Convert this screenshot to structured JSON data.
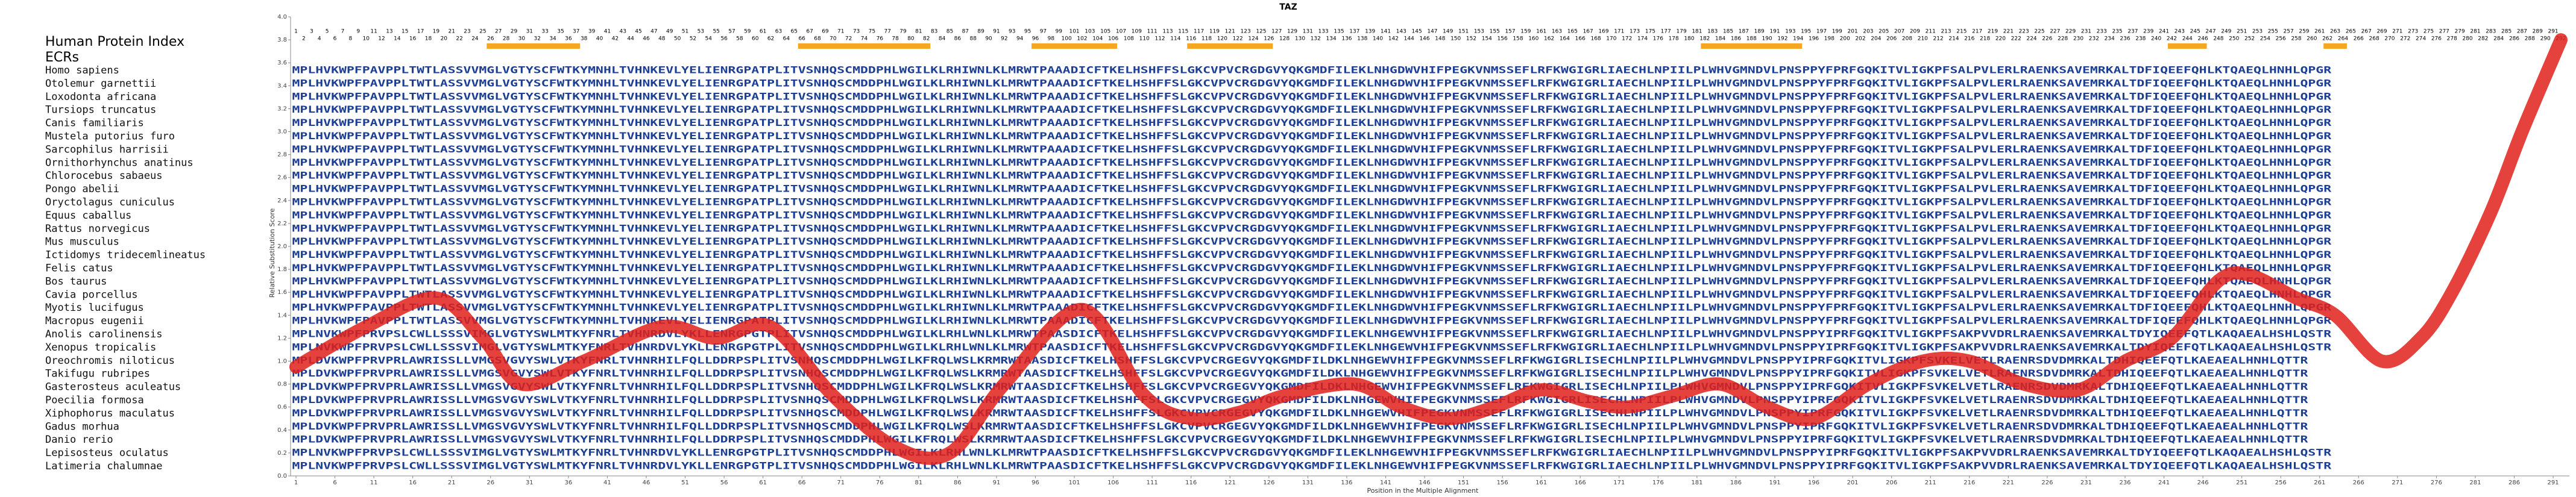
{
  "chart_data": {
    "type": "line",
    "title": "TAZ",
    "xlabel": "Position in the Multiple Alignment",
    "ylabel": "Relative Substitution Score",
    "index_label": "Human Protein Index",
    "ecr_label": "ECRs",
    "xlim": [
      1,
      292
    ],
    "ylim": [
      0,
      4
    ],
    "xticks": [
      1,
      6,
      11,
      16,
      21,
      26,
      31,
      36,
      41,
      46,
      51,
      56,
      61,
      66,
      71,
      76,
      81,
      86,
      91,
      96,
      101,
      106,
      111,
      116,
      121,
      126,
      131,
      136,
      141,
      146,
      151,
      156,
      161,
      166,
      171,
      176,
      181,
      186,
      191,
      196,
      201,
      206,
      211,
      216,
      221,
      226,
      231,
      236,
      241,
      246,
      251,
      256,
      261,
      266,
      271,
      276,
      281,
      286,
      291
    ],
    "yticks": [
      {
        "value": 0,
        "label": "0.0"
      },
      {
        "value": 0.2,
        "label": "0.2"
      },
      {
        "value": 0.4,
        "label": "0.4"
      },
      {
        "value": 0.6,
        "label": "0.6"
      },
      {
        "value": 0.8,
        "label": "0.8"
      },
      {
        "value": 1,
        "label": "1.0"
      },
      {
        "value": 1.2,
        "label": "1.2"
      },
      {
        "value": 1.4,
        "label": "1.4"
      },
      {
        "value": 1.6,
        "label": "1.6"
      },
      {
        "value": 1.8,
        "label": "1.8"
      },
      {
        "value": 2,
        "label": "2.0"
      },
      {
        "value": 2.2,
        "label": "2.2"
      },
      {
        "value": 2.4,
        "label": "2.4"
      },
      {
        "value": 2.6,
        "label": "2.6"
      },
      {
        "value": 2.8,
        "label": "2.8"
      },
      {
        "value": 3,
        "label": "3.0"
      },
      {
        "value": 3.2,
        "label": "3.2"
      },
      {
        "value": 3.4,
        "label": "3.4"
      },
      {
        "value": 3.6,
        "label": "3.6"
      },
      {
        "value": 3.8,
        "label": "3.8"
      },
      {
        "value": 4,
        "label": "4.0"
      }
    ],
    "human_index": [
      1,
      2,
      3,
      4,
      5,
      6,
      7,
      8,
      9,
      10,
      11,
      12,
      13,
      14,
      15,
      16,
      17,
      18,
      19,
      20,
      21,
      22,
      23,
      24,
      25,
      26,
      27,
      28,
      29,
      30,
      31,
      32,
      33,
      34,
      35,
      36,
      37,
      38,
      39,
      40,
      41,
      42,
      43,
      44,
      45,
      46,
      47,
      48,
      49,
      50,
      51,
      52,
      53,
      54,
      55,
      56,
      57,
      58,
      59,
      60,
      61,
      62,
      63,
      64,
      65,
      66,
      67,
      68,
      69,
      70,
      71,
      72,
      73,
      74,
      75,
      76,
      77,
      78,
      79,
      80,
      81,
      82,
      83,
      84,
      85,
      86,
      87,
      88,
      89,
      90,
      91,
      92,
      93,
      94,
      95,
      96,
      97,
      98,
      99,
      100,
      101,
      102,
      103,
      104,
      105,
      106,
      107,
      108,
      109,
      110,
      111,
      112,
      113,
      114,
      115,
      116,
      117,
      118,
      119,
      120,
      121,
      122,
      123,
      124,
      125,
      126,
      127,
      128,
      129,
      130,
      131,
      132,
      133,
      134,
      135,
      136,
      137,
      138,
      139,
      140,
      141,
      142,
      143,
      144,
      145,
      146,
      147,
      148,
      149,
      150,
      151,
      152,
      153,
      154,
      155,
      156,
      157,
      158,
      159,
      160,
      161,
      162,
      163,
      164,
      165,
      166,
      167,
      168,
      169,
      170,
      171,
      172,
      173,
      174,
      175,
      176,
      177,
      178,
      179,
      180,
      181,
      182,
      183,
      184,
      185,
      186,
      187,
      188,
      189,
      190,
      191,
      192,
      193,
      194,
      195,
      196,
      197,
      198,
      199,
      200,
      201,
      202,
      203,
      204,
      205,
      206,
      207,
      208,
      209,
      210,
      211,
      212,
      213,
      214,
      215,
      216,
      217,
      218,
      219,
      220,
      221,
      222,
      223,
      224,
      225,
      226,
      227,
      228,
      229,
      230,
      231,
      232,
      233,
      234,
      235,
      236,
      237,
      238,
      239,
      240,
      241,
      242,
      243,
      244,
      245,
      246,
      247,
      248,
      249,
      250,
      251,
      252,
      253,
      254,
      255,
      256,
      257,
      258,
      259,
      260,
      261,
      262,
      263,
      264,
      265,
      266,
      267,
      268,
      269,
      270,
      271,
      272,
      273,
      274,
      275,
      276,
      277,
      278,
      279,
      280,
      281,
      282,
      283,
      284,
      285,
      286,
      287,
      288,
      289,
      290,
      291,
      292
    ],
    "ecrs": [
      [
        26,
        37
      ],
      [
        66,
        82
      ],
      [
        96,
        106
      ],
      [
        116,
        126
      ],
      [
        182,
        194
      ],
      [
        242,
        246
      ],
      [
        262,
        264
      ]
    ],
    "ecr_color": "#f5a623",
    "rows": [
      {
        "name": "Homo sapiens",
        "sequence": "MPLHVKWPFPAVPPLTWTLASSVVMGLVGTYSCFWTKYMNHLTVHNKEVLYELIENRGPATPLITVSNHQSCMDDPHLWGILKLRHIWNLKLMRWTPAAADICFTKELHSHFFSLGKCVPVCRGDGVYQKGMDFILEKLNHGDWVHIFPEGKVNMSSEFLRFKWGIGRLIAECHLNPIILPLWHVGMNDVLPNSPPYFPRFGQKITVLIGKPFSALPVLERLRAENKSAVEMRKALTDFIQEEFQHLKTQAEQLHNHLQPGR"
      },
      {
        "name": "Otolemur garnettii",
        "sequence": "MPLHVKWPFPAVPPLTWTLASSVVMGLVGTYSCFWTKYMNHLTVHNKEVLYELIENRGPATPLITVSNHQSCMDDPHLWGILKLRHIWNLKLMRWTPAAADICFTKELHSHFFSLGKCVPVCRGDGVYQKGMDFILEKLNHGDWVHIFPEGKVNMSSEFLRFKWGIGRLIAECHLNPIILPLWHVGMNDVLPNSPPYFPRFGQKITVLIGKPFSALPVLERLRAENKSAVEMRKALTDFIQEEFQHLKTQAEQLHNHLQPGR"
      },
      {
        "name": "Loxodonta africana",
        "sequence": "MPLHVKWPFPAVPPLTWTLASSVVMGLVGTYSCFWTKYMNHLTVHNKEVLYELIENRGPATPLITVSNHQSCMDDPHLWGILKLRHIWNLKLMRWTPAAADICFTKELHSHFFSLGKCVPVCRGDGVYQKGMDFILEKLNHGDWVHIFPEGKVNMSSEFLRFKWGIGRLIAECHLNPIILPLWHVGMNDVLPNSPPYFPRFGQKITVLIGKPFSALPVLERLRAENKSAVEMRKALTDFIQEEFQHLKTQAEQLHNHLQPGR"
      },
      {
        "name": "Tursiops truncatus",
        "sequence": "MPLHVKWPFPAVPPLTWTLASSVVMGLVGTYSCFWTKYMNHLTVHNKEVLYELIENRGPATPLITVSNHQSCMDDPHLWGILKLRHIWNLKLMRWTPAAADICFTKELHSHFFSLGKCVPVCRGDGVYQKGMDFILEKLNHGDWVHIFPEGKVNMSSEFLRFKWGIGRLIAECHLNPIILPLWHVGMNDVLPNSPPYFPRFGQKITVLIGKPFSALPVLERLRAENKSAVEMRKALTDFIQEEFQHLKTQAEQLHNHLQPGR"
      },
      {
        "name": "Canis familiaris",
        "sequence": "MPLHVKWPFPAVPPLTWTLASSVVMGLVGTYSCFWTKYMNHLTVHNKEVLYELIENRGPATPLITVSNHQSCMDDPHLWGILKLRHIWNLKLMRWTPAAADICFTKELHSHFFSLGKCVPVCRGDGVYQKGMDFILEKLNHGDWVHIFPEGKVNMSSEFLRFKWGIGRLIAECHLNPIILPLWHVGMNDVLPNSPPYFPRFGQKITVLIGKPFSALPVLERLRAENKSAVEMRKALTDFIQEEFQHLKTQAEQLHNHLQPGR"
      },
      {
        "name": "Mustela putorius furo",
        "sequence": "MPLHVKWPFPAVPPLTWTLASSVVMGLVGTYSCFWTKYMNHLTVHNKEVLYELIENRGPATPLITVSNHQSCMDDPHLWGILKLRHIWNLKLMRWTPAAADICFTKELHSHFFSLGKCVPVCRGDGVYQKGMDFILEKLNHGDWVHIFPEGKVNMSSEFLRFKWGIGRLIAECHLNPIILPLWHVGMNDVLPNSPPYFPRFGQKITVLIGKPFSALPVLERLRAENKSAVEMRKALTDFIQEEFQHLKTQAEQLHNHLQPGR"
      },
      {
        "name": "Sarcophilus harrisii",
        "sequence": "MPLHVKWPFPAVPPLTWTLASSVVMGLVGTYSCFWTKYMNHLTVHNKEVLYELIENRGPATPLITVSNHQSCMDDPHLWGILKLRHIWNLKLMRWTPAAADICFTKELHSHFFSLGKCVPVCRGDGVYQKGMDFILEKLNHGDWVHIFPEGKVNMSSEFLRFKWGIGRLIAECHLNPIILPLWHVGMNDVLPNSPPYFPRFGQKITVLIGKPFSALPVLERLRAENKSAVEMRKALTDFIQEEFQHLKTQAEQLHNHLQPGR"
      },
      {
        "name": "Ornithorhynchus anatinus",
        "sequence": "MPLHVKWPFPAVPPLTWTLASSVVMGLVGTYSCFWTKYMNHLTVHNKEVLYELIENRGPATPLITVSNHQSCMDDPHLWGILKLRHIWNLKLMRWTPAAADICFTKELHSHFFSLGKCVPVCRGDGVYQKGMDFILEKLNHGDWVHIFPEGKVNMSSEFLRFKWGIGRLIAECHLNPIILPLWHVGMNDVLPNSPPYFPRFGQKITVLIGKPFSALPVLERLRAENKSAVEMRKALTDFIQEEFQHLKTQAEQLHNHLQPGR"
      },
      {
        "name": "Chlorocebus sabaeus",
        "sequence": "MPLHVKWPFPAVPPLTWTLASSVVMGLVGTYSCFWTKYMNHLTVHNKEVLYELIENRGPATPLITVSNHQSCMDDPHLWGILKLRHIWNLKLMRWTPAAADICFTKELHSHFFSLGKCVPVCRGDGVYQKGMDFILEKLNHGDWVHIFPEGKVNMSSEFLRFKWGIGRLIAECHLNPIILPLWHVGMNDVLPNSPPYFPRFGQKITVLIGKPFSALPVLERLRAENKSAVEMRKALTDFIQEEFQHLKTQAEQLHNHLQPGR"
      },
      {
        "name": "Pongo abelii",
        "sequence": "MPLHVKWPFPAVPPLTWTLASSVVMGLVGTYSCFWTKYMNHLTVHNKEVLYELIENRGPATPLITVSNHQSCMDDPHLWGILKLRHIWNLKLMRWTPAAADICFTKELHSHFFSLGKCVPVCRGDGVYQKGMDFILEKLNHGDWVHIFPEGKVNMSSEFLRFKWGIGRLIAECHLNPIILPLWHVGMNDVLPNSPPYFPRFGQKITVLIGKPFSALPVLERLRAENKSAVEMRKALTDFIQEEFQHLKTQAEQLHNHLQPGR"
      },
      {
        "name": "Oryctolagus cuniculus",
        "sequence": "MPLHVKWPFPAVPPLTWTLASSVVMGLVGTYSCFWTKYMNHLTVHNKEVLYELIENRGPATPLITVSNHQSCMDDPHLWGILKLRHIWNLKLMRWTPAAADICFTKELHSHFFSLGKCVPVCRGDGVYQKGMDFILEKLNHGDWVHIFPEGKVNMSSEFLRFKWGIGRLIAECHLNPIILPLWHVGMNDVLPNSPPYFPRFGQKITVLIGKPFSALPVLERLRAENKSAVEMRKALTDFIQEEFQHLKTQAEQLHNHLQPGR"
      },
      {
        "name": "Equus caballus",
        "sequence": "MPLHVKWPFPAVPPLTWTLASSVVMGLVGTYSCFWTKYMNHLTVHNKEVLYELIENRGPATPLITVSNHQSCMDDPHLWGILKLRHIWNLKLMRWTPAAADICFTKELHSHFFSLGKCVPVCRGDGVYQKGMDFILEKLNHGDWVHIFPEGKVNMSSEFLRFKWGIGRLIAECHLNPIILPLWHVGMNDVLPNSPPYFPRFGQKITVLIGKPFSALPVLERLRAENKSAVEMRKALTDFIQEEFQHLKTQAEQLHNHLQPGR"
      },
      {
        "name": "Rattus norvegicus",
        "sequence": "MPLHVKWPFPAVPPLTWTLASSVVMGLVGTYSCFWTKYMNHLTVHNKEVLYELIENRGPATPLITVSNHQSCMDDPHLWGILKLRHIWNLKLMRWTPAAADICFTKELHSHFFSLGKCVPVCRGDGVYQKGMDFILEKLNHGDWVHIFPEGKVNMSSEFLRFKWGIGRLIAECHLNPIILPLWHVGMNDVLPNSPPYFPRFGQKITVLIGKPFSALPVLERLRAENKSAVEMRKALTDFIQEEFQHLKTQAEQLHNHLQPGR"
      },
      {
        "name": "Mus musculus",
        "sequence": "MPLHVKWPFPAVPPLTWTLASSVVMGLVGTYSCFWTKYMNHLTVHNKEVLYELIENRGPATPLITVSNHQSCMDDPHLWGILKLRHIWNLKLMRWTPAAADICFTKELHSHFFSLGKCVPVCRGDGVYQKGMDFILEKLNHGDWVHIFPEGKVNMSSEFLRFKWGIGRLIAECHLNPIILPLWHVGMNDVLPNSPPYFPRFGQKITVLIGKPFSALPVLERLRAENKSAVEMRKALTDFIQEEFQHLKTQAEQLHNHLQPGR"
      },
      {
        "name": "Ictidomys tridecemlineatus",
        "sequence": "MPLHVKWPFPAVPPLTWTLASSVVMGLVGTYSCFWTKYMNHLTVHNKEVLYELIENRGPATPLITVSNHQSCMDDPHLWGILKLRHIWNLKLMRWTPAAADICFTKELHSHFFSLGKCVPVCRGDGVYQKGMDFILEKLNHGDWVHIFPEGKVNMSSEFLRFKWGIGRLIAECHLNPIILPLWHVGMNDVLPNSPPYFPRFGQKITVLIGKPFSALPVLERLRAENKSAVEMRKALTDFIQEEFQHLKTQAEQLHNHLQPGR"
      },
      {
        "name": "Felis catus",
        "sequence": "MPLHVKWPFPAVPPLTWTLASSVVMGLVGTYSCFWTKYMNHLTVHNKEVLYELIENRGPATPLITVSNHQSCMDDPHLWGILKLRHIWNLKLMRWTPAAADICFTKELHSHFFSLGKCVPVCRGDGVYQKGMDFILEKLNHGDWVHIFPEGKVNMSSEFLRFKWGIGRLIAECHLNPIILPLWHVGMNDVLPNSPPYFPRFGQKITVLIGKPFSALPVLERLRAENKSAVEMRKALTDFIQEEFQHLKTQAEQLHNHLQPGR"
      },
      {
        "name": "Bos taurus",
        "sequence": "MPLHVKWPFPAVPPLTWTLASSVVMGLVGTYSCFWTKYMNHLTVHNKEVLYELIENRGPATPLITVSNHQSCMDDPHLWGILKLRHIWNLKLMRWTPAAADICFTKELHSHFFSLGKCVPVCRGDGVYQKGMDFILEKLNHGDWVHIFPEGKVNMSSEFLRFKWGIGRLIAECHLNPIILPLWHVGMNDVLPNSPPYFPRFGQKITVLIGKPFSALPVLERLRAENKSAVEMRKALTDFIQEEFQHLKTQAEQLHNHLQPGR"
      },
      {
        "name": "Cavia porcellus",
        "sequence": "MPLHVKWPFPAVPPLTWTLASSVVMGLVGTYSCFWTKYMNHLTVHNKEVLYELIENRGPATPLITVSNHQSCMDDPHLWGILKLRHIWNLKLMRWTPAAADICFTKELHSHFFSLGKCVPVCRGDGVYQKGMDFILEKLNHGDWVHIFPEGKVNMSSEFLRFKWGIGRLIAECHLNPIILPLWHVGMNDVLPNSPPYFPRFGQKITVLIGKPFSALPVLERLRAENKSAVEMRKALTDFIQEEFQHLKTQAEQLHNHLQPGR"
      },
      {
        "name": "Myotis lucifugus",
        "sequence": "MPLHVKWPFPAVPPLTWTLASSVVMGLVGTYSCFWTKYMNHLTVHNKEVLYELIENRGPATPLITVSNHQSCMDDPHLWGILKLRHIWNLKLMRWTPAAADICFTKELHSHFFSLGKCVPVCRGDGVYQKGMDFILEKLNHGDWVHIFPEGKVNMSSEFLRFKWGIGRLIAECHLNPIILPLWHVGMNDVLPNSPPYFPRFGQKITVLIGKPFSALPVLERLRAENKSAVEMRKALTDFIQEEFQHLKTQAEQLHNHLQPGR"
      },
      {
        "name": "Macropus eugenii",
        "sequence": "MPLHVKWPFPAVPPLTWTLASSVVMGLVGTYSCFWTKYMNHLTVHNKEVLYELIENRGPATPLITVSNHQSCMDDPHLWGILKLRHIWNLKLMRWTPAAADICFTKELHSHFFSLGKCVPVCRGDGVYQKGMDFILEKLNHGDWVHIFPEGKVNMSSEFLRFKWGIGRLIAECHLNPIILPLWHVGMNDVLPNSPPYFPRFGQKITVLIGKPFSALPVLERLRAENKSAVEMRKALTDFIQEEFQHLKTQAEQLHNHLQPGR"
      },
      {
        "name": "Anolis carolinensis",
        "sequence": "MPLNVKWPFPRVPSLCWLLSSSVIMGLVGTYSWLMTKYFNRLTVHNRDVLYKLLENRGPGTPLITVSNHQSCMDDPHLWGILKLRHLWNLKLMRWTPAASDICFTKELHSHFFSLGKCVPVCRGDGVYQKGMDFILEKLNHGEWVHIFPEGKVNMSSEFLRFKWGIGRLIAECHLNPIILPLWHVGMNDVLPNSPPYIPRFGQKITVLIGKPFSAKPVVDRLRAENKSAVEMRKALTDYIQEEFQTLKAQAEALHSHLQSTR"
      },
      {
        "name": "Xenopus tropicalis",
        "sequence": "MPLNVKWPFPRVPSLCWLLSSSVIMGLVGTYSWLMTKYFNRLTVHNRDVLYKLLENRGPGTPLITVSNHQSCMDDPHLWGILKLRHLWNLKLMRWTPAASDICFTKELHSHFFSLGKCVPVCRGDGVYQKGMDFILEKLNHGEWVHIFPEGKVNMSSEFLRFKWGIGRLIAECHLNPIILPLWHVGMNDVLPNSPPYIPRFGQKITVLIGKPFSAKPVVDRLRAENKSAVEMRKALTDYIQEEFQTLKAQAEALHSHLQSTR"
      },
      {
        "name": "Oreochromis niloticus",
        "sequence": "MPLDVKWPFPRVPRLAWRISSLLVMGSVGVYSWLVTKYFNRLTVHNRHILFQLLDDRPSPLITVSNHQSCMDDPHLWGILKFRQLWSLKRMRWTAASDICFTKELHSHFFSLGKCVPVCRGEGVYQKGMDFILDKLNHGEWVHIFPEGKVNMSSEFLRFKWGIGRLISECHLNPIILPLWHVGMNDVLPNSPPYIPRFGQKITVLIGKPFSVKELVETLRAENRSDVDMRKALTDHIQEEFQTLKAEAEALHNHLQTTR"
      },
      {
        "name": "Takifugu rubripes",
        "sequence": "MPLDVKWPFPRVPRLAWRISSLLVMGSVGVYSWLVTKYFNRLTVHNRHILFQLLDDRPSPLITVSNHQSCMDDPHLWGILKFRQLWSLKRMRWTAASDICFTKELHSHFFSLGKCVPVCRGEGVYQKGMDFILDKLNHGEWVHIFPEGKVNMSSEFLRFKWGIGRLISECHLNPIILPLWHVGMNDVLPNSPPYIPRFGQKITVLIGKPFSVKELVETLRAENRSDVDMRKALTDHIQEEFQTLKAEAEALHNHLQTTR"
      },
      {
        "name": "Gasterosteus aculeatus",
        "sequence": "MPLDVKWPFPRVPRLAWRISSLLVMGSVGVYSWLVTKYFNRLTVHNRHILFQLLDDRPSPLITVSNHQSCMDDPHLWGILKFRQLWSLKRMRWTAASDICFTKELHSHFFSLGKCVPVCRGEGVYQKGMDFILDKLNHGEWVHIFPEGKVNMSSEFLRFKWGIGRLISECHLNPIILPLWHVGMNDVLPNSPPYIPRFGQKITVLIGKPFSVKELVETLRAENRSDVDMRKALTDHIQEEFQTLKAEAEALHNHLQTTR"
      },
      {
        "name": "Poecilia formosa",
        "sequence": "MPLDVKWPFPRVPRLAWRISSLLVMGSVGVYSWLVTKYFNRLTVHNRHILFQLLDDRPSPLITVSNHQSCMDDPHLWGILKFRQLWSLKRMRWTAASDICFTKELHSHFFSLGKCVPVCRGEGVYQKGMDFILDKLNHGEWVHIFPEGKVNMSSEFLRFKWGIGRLISECHLNPIILPLWHVGMNDVLPNSPPYIPRFGQKITVLIGKPFSVKELVETLRAENRSDVDMRKALTDHIQEEFQTLKAEAEALHNHLQTTR"
      },
      {
        "name": "Xiphophorus maculatus",
        "sequence": "MPLDVKWPFPRVPRLAWRISSLLVMGSVGVYSWLVTKYFNRLTVHNRHILFQLLDDRPSPLITVSNHQSCMDDPHLWGILKFRQLWSLKRMRWTAASDICFTKELHSHFFSLGKCVPVCRGEGVYQKGMDFILDKLNHGEWVHIFPEGKVNMSSEFLRFKWGIGRLISECHLNPIILPLWHVGMNDVLPNSPPYIPRFGQKITVLIGKPFSVKELVETLRAENRSDVDMRKALTDHIQEEFQTLKAEAEALHNHLQTTR"
      },
      {
        "name": "Gadus morhua",
        "sequence": "MPLDVKWPFPRVPRLAWRISSLLVMGSVGVYSWLVTKYFNRLTVHNRHILFQLLDDRPSPLITVSNHQSCMDDPHLWGILKFRQLWSLKRMRWTAASDICFTKELHSHFFSLGKCVPVCRGEGVYQKGMDFILDKLNHGEWVHIFPEGKVNMSSEFLRFKWGIGRLISECHLNPIILPLWHVGMNDVLPNSPPYIPRFGQKITVLIGKPFSVKELVETLRAENRSDVDMRKALTDHIQEEFQTLKAEAEALHNHLQTTR"
      },
      {
        "name": "Danio rerio",
        "sequence": "MPLDVKWPFPRVPRLAWRISSLLVMGSVGVYSWLVTKYFNRLTVHNRHILFQLLDDRPSPLITVSNHQSCMDDPHLWGILKFRQLWSLKRMRWTAASDICFTKELHSHFFSLGKCVPVCRGEGVYQKGMDFILDKLNHGEWVHIFPEGKVNMSSEFLRFKWGIGRLISECHLNPIILPLWHVGMNDVLPNSPPYIPRFGQKITVLIGKPFSVKELVETLRAENRSDVDMRKALTDHIQEEFQTLKAEAEALHNHLQTTR"
      },
      {
        "name": "Lepisosteus oculatus",
        "sequence": "MPLNVKWPFPRVPSLCWLLSSSVIMGLVGTYSWLMTKYFNRLTVHNRDVLYKLLENRGPGTPLITVSNHQSCMDDPHLWGILKLRHLWNLKLMRWTPAASDICFTKELHSHFFSLGKCVPVCRGDGVYQKGMDFILEKLNHGEWVHIFPEGKVNMSSEFLRFKWGIGRLIAECHLNPIILPLWHVGMNDVLPNSPPYIPRFGQKITVLIGKPFSAKPVVDRLRAENKSAVEMRKALTDYIQEEFQTLKAQAEALHSHLQSTR"
      },
      {
        "name": "Latimeria chalumnae",
        "sequence": "MPLNVKWPFPRVPSLCWLLSSSVIMGLVGTYSWLMTKYFNRLTVHNRDVLYKLLENRGPGTPLITVSNHQSCMDDPHLWGILKLRHLWNLKLMRWTPAASDICFTKELHSHFFSLGKCVPVCRGDGVYQKGMDFILEKLNHGEWVHIFPEGKVNMSSEFLRFKWGIGRLIAECHLNPIILPLWHVGMNDVLPNSPPYIPRFGQKITVLIGKPFSAKPVVDRLRAENKSAVEMRKALTDYIQEEFQTLKAQAEALHSHLQSTR"
      }
    ],
    "series": [
      {
        "name": "Relative Substitution Score",
        "color": "#e0201b",
        "x": [
          1,
          10,
          19,
          25,
          30,
          38,
          48,
          55,
          62,
          70,
          78,
          85,
          92,
          102,
          110,
          116,
          122,
          128,
          137,
          143,
          149,
          155,
          161,
          167,
          172,
          178,
          184,
          190,
          196,
          203,
          210,
          216,
          223,
          230,
          236,
          242,
          248,
          252,
          258,
          263,
          269,
          274,
          278,
          283,
          287,
          292
        ],
        "values": [
          0.95,
          1.3,
          1.55,
          1.2,
          0.8,
          1.0,
          1.3,
          1.2,
          1.3,
          0.7,
          0.25,
          0.2,
          0.8,
          1.45,
          0.7,
          0.5,
          0.55,
          0.7,
          0.8,
          0.6,
          0.5,
          0.6,
          0.75,
          0.65,
          0.6,
          0.7,
          0.8,
          0.6,
          0.5,
          0.8,
          1.0,
          1.0,
          0.8,
          0.75,
          1.0,
          1.2,
          1.7,
          1.75,
          1.55,
          1.4,
          1.0,
          1.2,
          1.6,
          2.3,
          3.0,
          3.8
        ]
      }
    ]
  }
}
